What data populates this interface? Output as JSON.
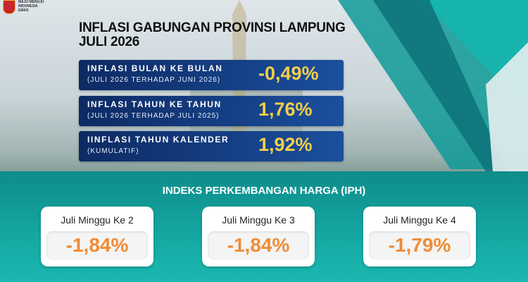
{
  "logo": {
    "lines": [
      "MAJU MENUJU",
      "INDONESIA",
      "EMAS"
    ]
  },
  "title": {
    "line1": "INFLASI GABUNGAN PROVINSI LAMPUNG",
    "line2": "JULI 2026"
  },
  "rows": [
    {
      "label": "INFLASI BULAN KE BULAN",
      "sub": "(JULI 2026 TERHADAP JUNI 2026)",
      "value": "-0,49%"
    },
    {
      "label": "INFLASI TAHUN KE TAHUN",
      "sub": "(JULI 2026 TERHADAP JULI 2025)",
      "value": "1,76%"
    },
    {
      "label": "IINFLASI TAHUN KALENDER",
      "sub": "(KUMULATIF)",
      "value": "1,92%"
    }
  ],
  "iph": {
    "heading": "INDEKS PERKEMBANGAN HARGA (IPH)",
    "cards": [
      {
        "label": "Juli Minggu Ke 2",
        "value": "-1,84%"
      },
      {
        "label": "Juli Minggu Ke 3",
        "value": "-1,84%"
      },
      {
        "label": "Juli Minggu Ke 4",
        "value": "-1,79%"
      }
    ]
  }
}
